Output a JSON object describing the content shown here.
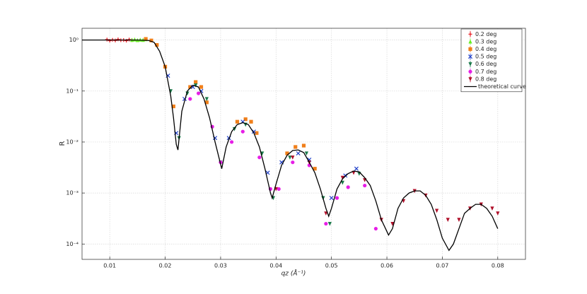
{
  "chart_data": {
    "type": "scatter",
    "x_label": "qz (Å⁻¹)",
    "y_label": "R",
    "xlim": [
      0.005,
      0.085
    ],
    "ylim": [
      5e-05,
      1.7
    ],
    "log_y": true,
    "grid": true,
    "legend": "top-right",
    "xticks": [
      0.01,
      0.02,
      0.03,
      0.04,
      0.05,
      0.06,
      0.07,
      0.08
    ],
    "yticks": [
      {
        "value": 0.0001,
        "label": "10⁻⁴"
      },
      {
        "value": 0.001,
        "label": "10⁻³"
      },
      {
        "value": 0.01,
        "label": "10⁻²"
      },
      {
        "value": 0.1,
        "label": "10⁻¹"
      },
      {
        "value": 1,
        "label": "10⁰"
      }
    ],
    "series": [
      {
        "name": "0.2 deg",
        "color": "#e8141b",
        "style": "markers",
        "marker": "plus",
        "x": [
          0.0095,
          0.01,
          0.0105,
          0.011,
          0.0115,
          0.012,
          0.0125,
          0.013,
          0.0135,
          0.014
        ],
        "values": [
          1.02,
          0.97,
          1.01,
          0.98,
          1.03,
          0.99,
          1.0,
          0.97,
          1.02,
          1.0
        ]
      },
      {
        "name": "0.3 deg",
        "color": "#66ee22",
        "style": "markers",
        "marker": "triangle-up",
        "x": [
          0.014,
          0.0145,
          0.015,
          0.0155,
          0.016,
          0.0165
        ],
        "values": [
          1.0,
          1.02,
          0.99,
          1.01,
          1.0,
          1.03
        ]
      },
      {
        "name": "0.4 deg",
        "color": "#f07f1a",
        "style": "markers",
        "marker": "square",
        "x": [
          0.0165,
          0.0175,
          0.0185,
          0.02,
          0.0215,
          0.0245,
          0.0255,
          0.0265,
          0.0275,
          0.033,
          0.0345,
          0.0355,
          0.0365,
          0.042,
          0.0435,
          0.045,
          0.047
        ],
        "values": [
          1.05,
          0.98,
          0.8,
          0.3,
          0.05,
          0.12,
          0.15,
          0.12,
          0.06,
          0.025,
          0.028,
          0.025,
          0.015,
          0.006,
          0.008,
          0.0085,
          0.003
        ]
      },
      {
        "name": "0.5 deg",
        "color": "#1f3fc8",
        "style": "markers",
        "marker": "x",
        "x": [
          0.0205,
          0.022,
          0.0235,
          0.025,
          0.0265,
          0.029,
          0.0315,
          0.034,
          0.036,
          0.0385,
          0.041,
          0.044,
          0.046,
          0.05,
          0.0525,
          0.0545
        ],
        "values": [
          0.2,
          0.015,
          0.07,
          0.12,
          0.1,
          0.012,
          0.012,
          0.025,
          0.016,
          0.0025,
          0.004,
          0.006,
          0.0045,
          0.0008,
          0.0022,
          0.003
        ]
      },
      {
        "name": "0.6 deg",
        "color": "#1a7a4a",
        "style": "markers",
        "marker": "triangle-down",
        "x": [
          0.021,
          0.0225,
          0.024,
          0.0255,
          0.0275,
          0.03,
          0.0325,
          0.0345,
          0.0375,
          0.0395,
          0.0425,
          0.0455,
          0.0485,
          0.0497,
          0.052,
          0.055
        ],
        "values": [
          0.1,
          0.012,
          0.09,
          0.13,
          0.07,
          0.004,
          0.018,
          0.022,
          0.006,
          0.0008,
          0.005,
          0.006,
          0.0008,
          0.00025,
          0.0016,
          0.0024
        ]
      },
      {
        "name": "0.7 deg",
        "color": "#e61ee6",
        "style": "markers",
        "marker": "circle",
        "x": [
          0.0245,
          0.026,
          0.0285,
          0.03,
          0.032,
          0.034,
          0.037,
          0.039,
          0.0405,
          0.043,
          0.046,
          0.049,
          0.051,
          0.053,
          0.056,
          0.058
        ],
        "values": [
          0.07,
          0.09,
          0.02,
          0.004,
          0.01,
          0.016,
          0.005,
          0.0012,
          0.0012,
          0.004,
          0.0035,
          0.00025,
          0.0008,
          0.0013,
          0.0014,
          0.0002
        ]
      },
      {
        "name": "0.8 deg",
        "color": "#b0102a",
        "style": "markers",
        "marker": "triangle-down",
        "x": [
          0.04,
          0.043,
          0.046,
          0.049,
          0.052,
          0.054,
          0.056,
          0.059,
          0.061,
          0.063,
          0.065,
          0.067,
          0.069,
          0.071,
          0.073,
          0.075,
          0.077,
          0.079,
          0.08
        ],
        "values": [
          0.0012,
          0.005,
          0.004,
          0.0004,
          0.002,
          0.0025,
          0.0018,
          0.0003,
          0.00025,
          0.0007,
          0.0011,
          0.0009,
          0.00045,
          0.0003,
          0.0003,
          0.0005,
          0.0006,
          0.0005,
          0.0004
        ]
      },
      {
        "name": "theoretical curve",
        "color": "#000000",
        "style": "line",
        "x": [
          0.005,
          0.01,
          0.015,
          0.017,
          0.018,
          0.019,
          0.02,
          0.021,
          0.0215,
          0.022,
          0.0223,
          0.023,
          0.024,
          0.025,
          0.026,
          0.027,
          0.028,
          0.029,
          0.0302,
          0.031,
          0.032,
          0.033,
          0.034,
          0.035,
          0.036,
          0.037,
          0.038,
          0.039,
          0.0393,
          0.04,
          0.041,
          0.042,
          0.043,
          0.044,
          0.045,
          0.046,
          0.047,
          0.048,
          0.049,
          0.0495,
          0.05,
          0.051,
          0.052,
          0.053,
          0.054,
          0.055,
          0.056,
          0.057,
          0.058,
          0.059,
          0.0603,
          0.061,
          0.062,
          0.063,
          0.064,
          0.065,
          0.066,
          0.067,
          0.068,
          0.069,
          0.07,
          0.0712,
          0.072,
          0.073,
          0.074,
          0.075,
          0.076,
          0.077,
          0.078,
          0.079,
          0.08
        ],
        "values": [
          1,
          1,
          1,
          0.98,
          0.9,
          0.6,
          0.3,
          0.08,
          0.03,
          0.009,
          0.007,
          0.04,
          0.1,
          0.13,
          0.12,
          0.07,
          0.03,
          0.01,
          0.003,
          0.008,
          0.016,
          0.022,
          0.024,
          0.022,
          0.015,
          0.008,
          0.003,
          0.001,
          0.0008,
          0.0015,
          0.0035,
          0.0055,
          0.0068,
          0.007,
          0.0062,
          0.004,
          0.0025,
          0.0012,
          0.0005,
          0.00035,
          0.0005,
          0.0012,
          0.0019,
          0.0024,
          0.0027,
          0.0026,
          0.002,
          0.0014,
          0.0007,
          0.0003,
          0.00015,
          0.0002,
          0.0005,
          0.0008,
          0.001,
          0.0011,
          0.0011,
          0.0009,
          0.0006,
          0.0003,
          0.00013,
          7.5e-05,
          0.0001,
          0.0002,
          0.0004,
          0.0005,
          0.0006,
          0.0006,
          0.0005,
          0.00035,
          0.0002
        ]
      }
    ]
  }
}
